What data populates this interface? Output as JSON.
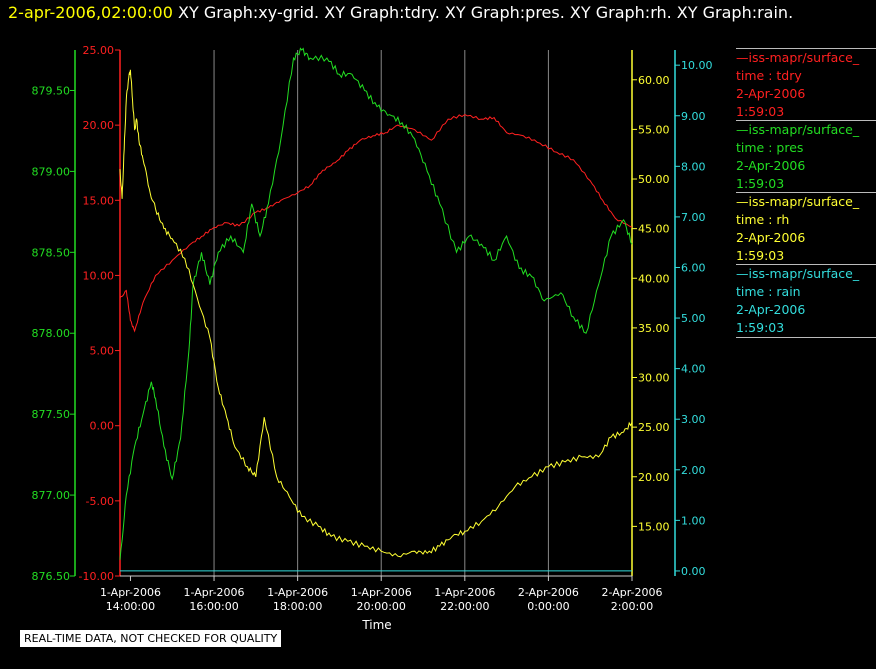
{
  "header": {
    "timestamp": "2-apr-2006,02:00:00",
    "titles": "XY Graph:xy-grid.  XY Graph:tdry.  XY Graph:pres.  XY Graph:rh.  XY Graph:rain."
  },
  "legend": [
    {
      "name": "iss-mapr/surface_",
      "field": "time : tdry",
      "date": "2-Apr-2006",
      "time": "1:59:03",
      "color": "#ff2020"
    },
    {
      "name": "iss-mapr/surface_",
      "field": "time : pres",
      "date": "2-Apr-2006",
      "time": "1:59:03",
      "color": "#22dd22"
    },
    {
      "name": "iss-mapr/surface_",
      "field": "time : rh",
      "date": "2-Apr-2006",
      "time": "1:59:03",
      "color": "#ffff33"
    },
    {
      "name": "iss-mapr/surface_",
      "field": "time : rain",
      "date": "2-Apr-2006",
      "time": "1:59:03",
      "color": "#33dddd"
    }
  ],
  "note": "REAL-TIME DATA, NOT CHECKED FOR QUALITY",
  "chart_data": {
    "type": "line",
    "xlabel": "Time",
    "x_ticks": [
      {
        "l1": "1-Apr-2006",
        "l2": "14:00:00",
        "h": 14
      },
      {
        "l1": "1-Apr-2006",
        "l2": "16:00:00",
        "h": 16
      },
      {
        "l1": "1-Apr-2006",
        "l2": "18:00:00",
        "h": 18
      },
      {
        "l1": "1-Apr-2006",
        "l2": "20:00:00",
        "h": 20
      },
      {
        "l1": "1-Apr-2006",
        "l2": "22:00:00",
        "h": 22
      },
      {
        "l1": "2-Apr-2006",
        "l2": "0:00:00",
        "h": 24
      },
      {
        "l1": "2-Apr-2006",
        "l2": "2:00:00",
        "h": 26
      }
    ],
    "xlim_hours": [
      13.75,
      26.0
    ],
    "axes": {
      "pres": {
        "color": "#22dd22",
        "range": [
          876.5,
          879.75
        ],
        "ticks": [
          "876.50",
          "877.00",
          "877.50",
          "878.00",
          "878.50",
          "879.00",
          "879.50"
        ]
      },
      "tdry": {
        "color": "#ff2020",
        "range": [
          -10,
          25
        ],
        "ticks": [
          "-10.00",
          "-5.00",
          "0.00",
          "5.00",
          "10.00",
          "15.00",
          "20.00",
          "25.00"
        ]
      },
      "rh": {
        "color": "#ffff33",
        "range": [
          10,
          63
        ],
        "ticks": [
          "15.00",
          "20.00",
          "25.00",
          "30.00",
          "35.00",
          "40.00",
          "45.00",
          "50.00",
          "55.00",
          "60.00"
        ]
      },
      "rain": {
        "color": "#33dddd",
        "range": [
          -0.1,
          10.3
        ],
        "ticks": [
          "0.00",
          "1.00",
          "2.00",
          "3.00",
          "4.00",
          "5.00",
          "6.00",
          "7.00",
          "8.00",
          "9.00",
          "10.00"
        ]
      }
    },
    "grid": true,
    "series": [
      {
        "axis": "tdry",
        "color": "#ff2020",
        "x": [
          13.75,
          13.9,
          14.0,
          14.1,
          14.3,
          14.6,
          15.0,
          15.4,
          15.7,
          16.0,
          16.3,
          16.6,
          17.0,
          17.3,
          17.6,
          18.0,
          18.3,
          18.6,
          18.9,
          19.2,
          19.5,
          19.8,
          20.1,
          20.4,
          20.8,
          21.2,
          21.6,
          22.0,
          22.4,
          22.7,
          23.0,
          23.4,
          23.8,
          24.2,
          24.6,
          25.0,
          25.3,
          25.6,
          26.0
        ],
        "values": [
          8.5,
          9.0,
          7.0,
          6.3,
          8.2,
          10.0,
          11.0,
          12.0,
          12.6,
          13.2,
          13.5,
          13.3,
          14.2,
          14.5,
          15.0,
          15.5,
          16.0,
          17.0,
          17.5,
          18.3,
          19.0,
          19.3,
          19.5,
          20.0,
          19.7,
          19.0,
          20.4,
          20.7,
          20.4,
          20.5,
          19.5,
          19.3,
          18.8,
          18.2,
          17.7,
          16.3,
          15.0,
          13.8,
          13.2
        ]
      },
      {
        "axis": "pres",
        "color": "#22dd22",
        "x": [
          13.75,
          13.9,
          14.1,
          14.3,
          14.5,
          14.6,
          14.8,
          15.0,
          15.2,
          15.4,
          15.5,
          15.7,
          15.9,
          16.1,
          16.4,
          16.7,
          16.9,
          17.1,
          17.3,
          17.6,
          17.9,
          18.1,
          18.3,
          18.7,
          19.0,
          19.3,
          19.6,
          19.9,
          20.2,
          20.5,
          20.8,
          21.1,
          21.4,
          21.8,
          22.1,
          22.4,
          22.7,
          23.0,
          23.3,
          23.6,
          23.9,
          24.3,
          24.6,
          24.9,
          25.2,
          25.5,
          25.8,
          26.0
        ],
        "values": [
          876.6,
          877.0,
          877.3,
          877.5,
          877.7,
          877.6,
          877.3,
          877.1,
          877.35,
          877.9,
          878.3,
          878.5,
          878.3,
          878.5,
          878.6,
          878.5,
          878.8,
          878.6,
          878.8,
          879.2,
          879.7,
          879.75,
          879.7,
          879.7,
          879.6,
          879.6,
          879.5,
          879.4,
          879.35,
          879.3,
          879.2,
          879.0,
          878.8,
          878.5,
          878.6,
          878.55,
          878.45,
          878.6,
          878.4,
          878.35,
          878.2,
          878.25,
          878.1,
          878.0,
          878.3,
          878.6,
          878.7,
          878.55
        ]
      },
      {
        "axis": "rh",
        "color": "#ffff33",
        "x": [
          13.75,
          13.8,
          13.85,
          13.9,
          13.95,
          14.0,
          14.05,
          14.1,
          14.15,
          14.2,
          14.3,
          14.45,
          14.6,
          14.8,
          15.0,
          15.3,
          15.6,
          15.9,
          16.1,
          16.3,
          16.5,
          16.8,
          17.0,
          17.2,
          17.5,
          17.8,
          18.1,
          18.5,
          18.8,
          19.2,
          19.6,
          20.0,
          20.4,
          20.8,
          21.1,
          21.4,
          21.7,
          22.0,
          22.4,
          22.8,
          23.2,
          23.6,
          24.0,
          24.4,
          24.8,
          25.2,
          25.5,
          25.8,
          26.0
        ],
        "values": [
          51,
          48,
          53,
          58,
          60,
          61,
          58,
          55,
          56,
          54,
          52,
          49,
          47,
          45,
          44,
          42,
          38,
          34,
          29,
          26,
          23,
          21,
          20,
          26,
          20,
          18,
          16,
          15,
          14,
          13.5,
          13,
          12.5,
          12,
          12.5,
          12.3,
          13,
          14,
          14.5,
          15.5,
          17,
          19,
          20,
          21,
          21.5,
          22,
          22,
          24,
          24.5,
          25.5
        ]
      },
      {
        "axis": "rain",
        "color": "#33dddd",
        "x": [
          13.75,
          26.0
        ],
        "values": [
          0.0,
          0.0
        ]
      }
    ]
  }
}
